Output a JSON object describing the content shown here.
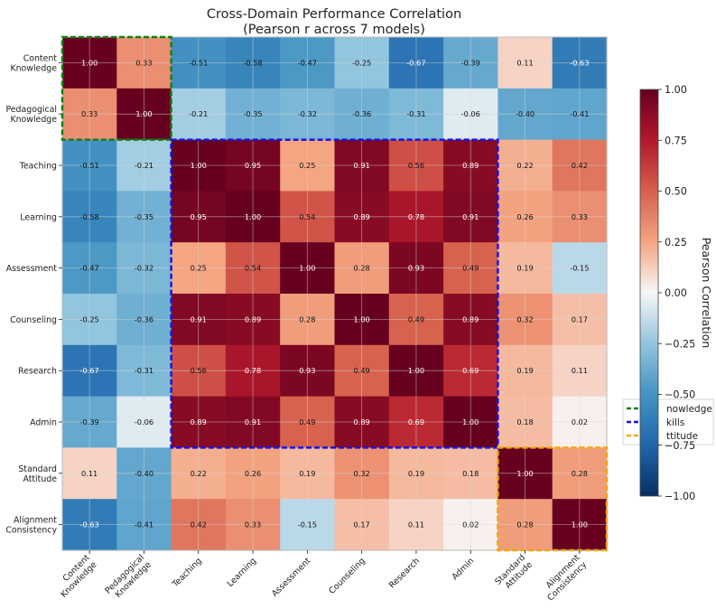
{
  "chart_data": {
    "type": "heatmap",
    "title": "Cross-Domain Performance Correlation",
    "subtitle": "(Pearson r across 7 models)",
    "row_labels": [
      [
        "Content",
        "Knowledge"
      ],
      [
        "Pedagogical",
        "Knowledge"
      ],
      [
        "Teaching"
      ],
      [
        "Learning"
      ],
      [
        "Assessment"
      ],
      [
        "Counseling"
      ],
      [
        "Research"
      ],
      [
        "Admin"
      ],
      [
        "Standard",
        "Attitude"
      ],
      [
        "Alignment",
        "Consistency"
      ]
    ],
    "col_labels": [
      [
        "Content",
        "Knowledge"
      ],
      [
        "Pedagogical",
        "Knowledge"
      ],
      [
        "Teaching"
      ],
      [
        "Learning"
      ],
      [
        "Assessment"
      ],
      [
        "Counseling"
      ],
      [
        "Research"
      ],
      [
        "Admin"
      ],
      [
        "Standard",
        "Attitude"
      ],
      [
        "Alignment",
        "Consistency"
      ]
    ],
    "values": [
      [
        1.0,
        0.33,
        -0.51,
        -0.58,
        -0.47,
        -0.25,
        -0.67,
        -0.39,
        0.11,
        -0.63
      ],
      [
        0.33,
        1.0,
        -0.21,
        -0.35,
        -0.32,
        -0.36,
        -0.31,
        -0.06,
        -0.4,
        -0.41
      ],
      [
        -0.51,
        -0.21,
        1.0,
        0.95,
        0.25,
        0.91,
        0.56,
        0.89,
        0.22,
        0.42
      ],
      [
        -0.58,
        -0.35,
        0.95,
        1.0,
        0.54,
        0.89,
        0.78,
        0.91,
        0.26,
        0.33
      ],
      [
        -0.47,
        -0.32,
        0.25,
        0.54,
        1.0,
        0.28,
        0.93,
        0.49,
        0.19,
        -0.15
      ],
      [
        -0.25,
        -0.36,
        0.91,
        0.89,
        0.28,
        1.0,
        0.49,
        0.89,
        0.32,
        0.17
      ],
      [
        -0.67,
        -0.31,
        0.56,
        0.78,
        0.93,
        0.49,
        1.0,
        0.69,
        0.19,
        0.11
      ],
      [
        -0.39,
        -0.06,
        0.89,
        0.91,
        0.49,
        0.89,
        0.69,
        1.0,
        0.18,
        0.02
      ],
      [
        0.11,
        -0.4,
        0.22,
        0.26,
        0.19,
        0.32,
        0.19,
        0.18,
        1.0,
        0.28
      ],
      [
        -0.63,
        -0.41,
        0.42,
        0.33,
        -0.15,
        0.17,
        0.11,
        0.02,
        0.28,
        1.0
      ]
    ],
    "colormap": "RdBu_r",
    "vmin": -1.0,
    "vmax": 1.0,
    "colorbar": {
      "label": "Pearson Correlation",
      "ticks": [
        "1.00",
        "0.75",
        "0.50",
        "0.25",
        "0.00",
        "−0.25",
        "−0.50",
        "−0.75",
        "−1.00"
      ],
      "tick_values": [
        1.0,
        0.75,
        0.5,
        0.25,
        0.0,
        -0.25,
        -0.5,
        -0.75,
        -1.0
      ]
    },
    "groups": [
      {
        "label": "Knowledge",
        "start": 0,
        "end": 1,
        "color": "#138013"
      },
      {
        "label": "Skills",
        "start": 2,
        "end": 7,
        "color": "#1515e6"
      },
      {
        "label": "Attitude",
        "start": 8,
        "end": 9,
        "color": "#f4a60e"
      }
    ],
    "legend_visible_text": [
      "nowledge",
      "kills",
      "ttitude"
    ],
    "legend_position": "right, partially covered by colorbar"
  }
}
